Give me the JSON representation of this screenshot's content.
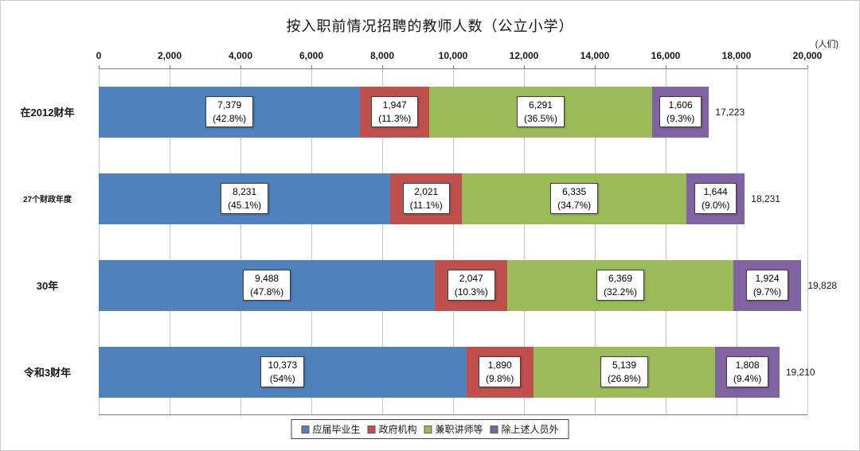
{
  "figure": {
    "title": "按入职前情况招聘的教师人数（公立小学）",
    "unit_label": "(人们)"
  },
  "chart_data": {
    "type": "bar",
    "orientation": "horizontal",
    "stacked": true,
    "title": "按入职前情况招聘的教师人数（公立小学）",
    "unit": "(人们)",
    "grid": true,
    "legend_position": "bottom",
    "x_axis": {
      "min": 0,
      "max": 20000,
      "tick_interval": 2000,
      "tick_labels": [
        "0",
        "2,000",
        "4,000",
        "6,000",
        "8,000",
        "10,000",
        "12,000",
        "14,000",
        "16,000",
        "18,000",
        "20,000"
      ]
    },
    "categories": [
      "在2012财年",
      "27个财政年度",
      "30年",
      "令和3财年"
    ],
    "series": [
      {
        "name": "应届毕业生",
        "color": "#4F81BD",
        "values": [
          7379,
          8231,
          9488,
          10373
        ],
        "value_labels": [
          "7,379",
          "8,231",
          "9,488",
          "10,373"
        ],
        "percent_labels": [
          "(42.8%)",
          "(45.1%)",
          "(47.8%)",
          "(54%)"
        ]
      },
      {
        "name": "政府机构",
        "color": "#C0504D",
        "values": [
          1947,
          2021,
          2047,
          1890
        ],
        "value_labels": [
          "1,947",
          "2,021",
          "2,047",
          "1,890"
        ],
        "percent_labels": [
          "(11.3%)",
          "(11.1%)",
          "(10.3%)",
          "(9.8%)"
        ]
      },
      {
        "name": "兼职讲师等",
        "color": "#9BBB59",
        "values": [
          6291,
          6335,
          6369,
          5139
        ],
        "value_labels": [
          "6,291",
          "6,335",
          "6,369",
          "5,139"
        ],
        "percent_labels": [
          "(36.5%)",
          "(34.7%)",
          "(32.2%)",
          "(26.8%)"
        ]
      },
      {
        "name": "除上述人员外",
        "color": "#8064A2",
        "values": [
          1606,
          1644,
          1924,
          1808
        ],
        "value_labels": [
          "1,606",
          "1,644",
          "1,924",
          "1,808"
        ],
        "percent_labels": [
          "(9.3%)",
          "(9.0%)",
          "(9.7%)",
          "(9.4%)"
        ]
      }
    ],
    "totals": [
      17223,
      18231,
      19828,
      19210
    ],
    "total_labels": [
      "17,223",
      "18,231",
      "19,828",
      "19,210"
    ]
  }
}
